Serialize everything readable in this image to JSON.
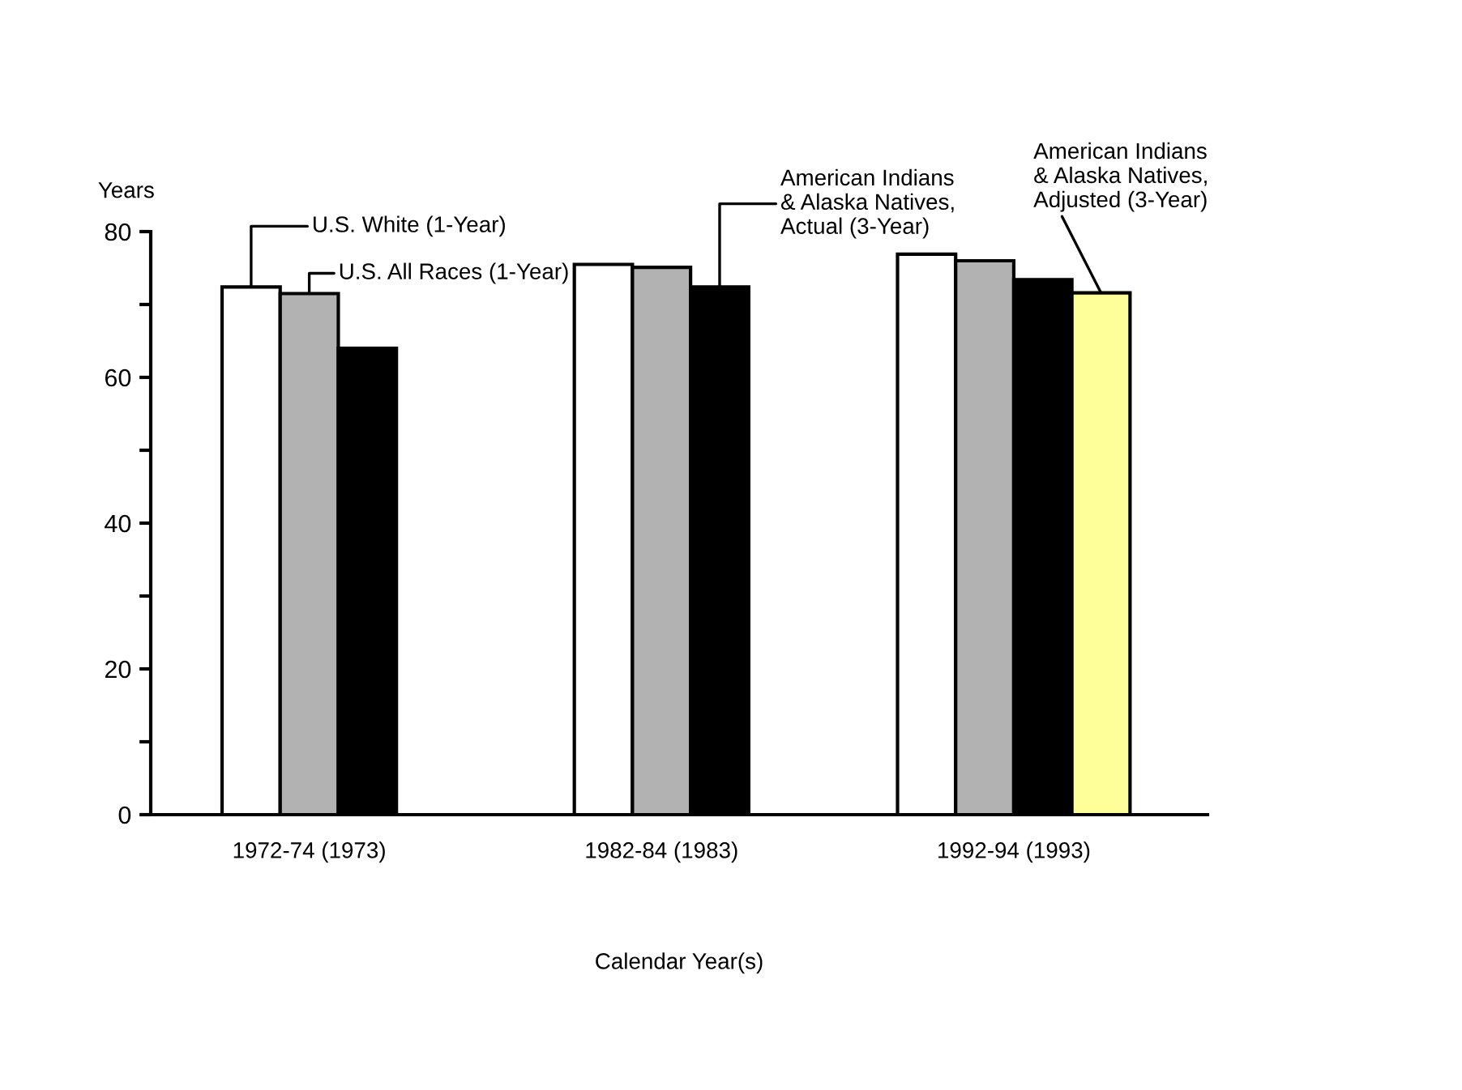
{
  "chart_data": {
    "type": "bar",
    "xlabel": "Calendar Year(s)",
    "ylabel": "Years",
    "categories": [
      "1972-74 (1973)",
      "1982-84 (1983)",
      "1992-94 (1993)"
    ],
    "series": [
      {
        "name": "U.S. White (1-Year)",
        "color": "#ffffff",
        "values": [
          72.4,
          75.5,
          76.9
        ]
      },
      {
        "name": "U.S. All Races (1-Year)",
        "color": "#b2b2b2",
        "values": [
          71.5,
          75.1,
          76.0
        ]
      },
      {
        "name": "American Indians\n& Alaska Natives,\nActual (3-Year)",
        "color": "#000000",
        "values": [
          64.0,
          72.4,
          73.4
        ]
      },
      {
        "name": "American Indians\n& Alaska Natives,\nAdjusted (3-Year)",
        "color": "#ffff99",
        "values": [
          null,
          null,
          71.6
        ]
      }
    ],
    "ylim": [
      0,
      80
    ],
    "yticks": [
      0,
      {
        "value": 10,
        "label": null
      },
      20,
      {
        "value": 30,
        "label": null
      },
      40,
      {
        "value": 50,
        "label": null
      },
      60,
      {
        "value": 70,
        "label": null
      },
      80
    ],
    "grid": false
  }
}
